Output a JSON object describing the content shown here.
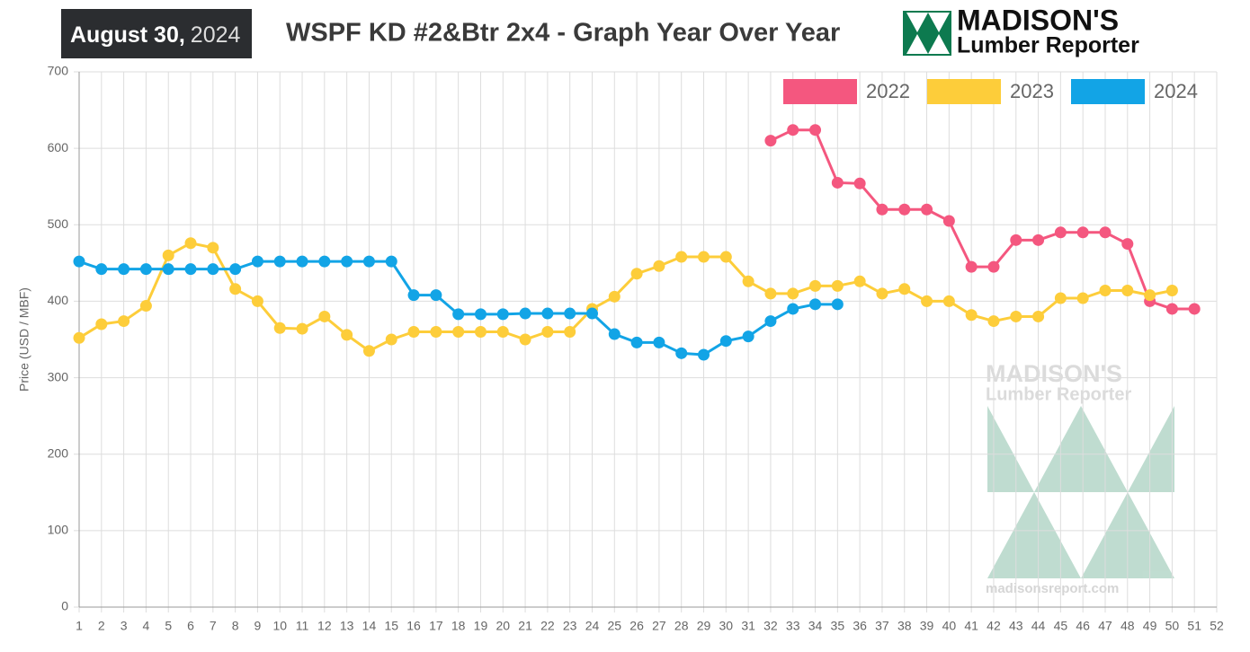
{
  "header": {
    "date": "August 30,",
    "year": "2024",
    "logo_line1": "MADISON'S",
    "logo_line2": "Lumber Reporter"
  },
  "watermark": {
    "line1": "MADISON'S",
    "line2": "Lumber Reporter",
    "url": "madisonsreport.com"
  },
  "chart_data": {
    "type": "line",
    "title": "WSPF KD #2&Btr 2x4 - Graph Year Over Year",
    "y_label": "Price (USD / MBF)",
    "categories": [
      "1",
      "2",
      "3",
      "4",
      "5",
      "6",
      "7",
      "8",
      "9",
      "10",
      "11",
      "12",
      "13",
      "14",
      "15",
      "16",
      "17",
      "18",
      "19",
      "20",
      "21",
      "22",
      "23",
      "24",
      "25",
      "26",
      "27",
      "28",
      "29",
      "30",
      "31",
      "32",
      "33",
      "34",
      "35",
      "36",
      "37",
      "38",
      "39",
      "40",
      "41",
      "42",
      "43",
      "44",
      "45",
      "46",
      "47",
      "48",
      "49",
      "50",
      "51",
      "52"
    ],
    "ylim": [
      0,
      700
    ],
    "yticks": [
      0,
      100,
      200,
      300,
      400,
      500,
      600,
      700
    ],
    "grid": true,
    "legend": "top-right",
    "series": [
      {
        "name": "2022",
        "color": "#f4577f",
        "values": [
          null,
          null,
          null,
          null,
          null,
          null,
          null,
          null,
          null,
          null,
          null,
          null,
          null,
          null,
          null,
          null,
          null,
          null,
          null,
          null,
          null,
          null,
          null,
          null,
          null,
          null,
          null,
          null,
          null,
          null,
          null,
          610,
          624,
          624,
          555,
          554,
          520,
          520,
          520,
          505,
          445,
          445,
          480,
          480,
          490,
          490,
          490,
          475,
          400,
          390,
          390,
          null
        ]
      },
      {
        "name": "2023",
        "color": "#fdcd3a",
        "values": [
          352,
          370,
          374,
          394,
          460,
          476,
          470,
          416,
          400,
          365,
          364,
          380,
          356,
          335,
          350,
          360,
          360,
          360,
          360,
          360,
          350,
          360,
          360,
          390,
          406,
          436,
          446,
          458,
          458,
          458,
          426,
          410,
          410,
          420,
          420,
          426,
          410,
          416,
          400,
          400,
          382,
          374,
          380,
          380,
          404,
          404,
          414,
          414,
          408,
          414,
          null,
          null
        ]
      },
      {
        "name": "2024",
        "color": "#12a4e6",
        "values": [
          452,
          442,
          442,
          442,
          442,
          442,
          442,
          442,
          452,
          452,
          452,
          452,
          452,
          452,
          452,
          408,
          408,
          383,
          383,
          383,
          384,
          384,
          384,
          384,
          357,
          346,
          346,
          332,
          330,
          348,
          354,
          374,
          390,
          396,
          396,
          null,
          null,
          null,
          null,
          null,
          null,
          null,
          null,
          null,
          null,
          null,
          null,
          null,
          null,
          null,
          null,
          null
        ]
      }
    ]
  }
}
